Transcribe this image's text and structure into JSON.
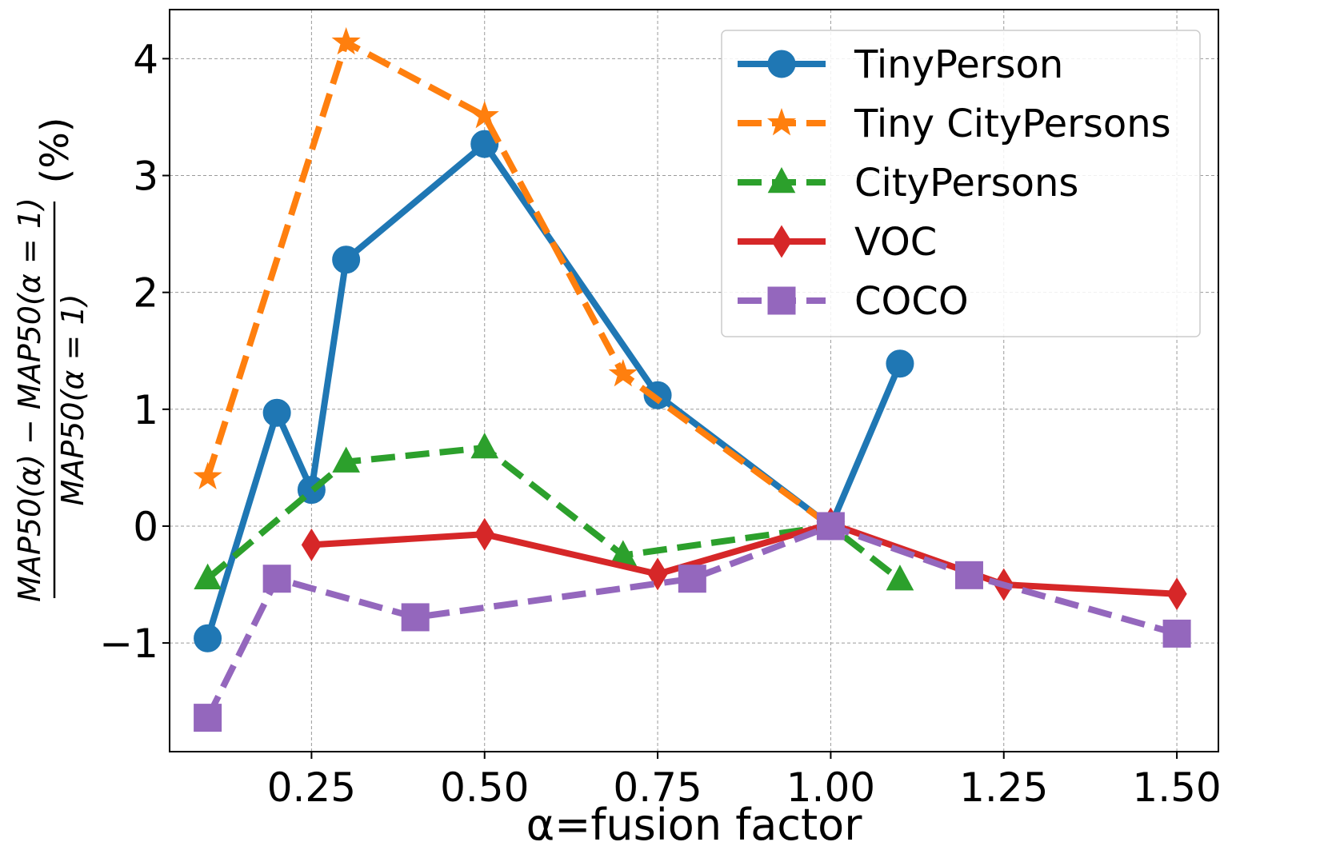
{
  "chart_data": {
    "type": "line",
    "title": "",
    "xlabel": "α=fusion factor",
    "ylabel": {
      "numerator": "MAP50(α) − MAP50(α = 1)",
      "denominator": "MAP50(α = 1)",
      "unit": "(%)"
    },
    "xlim": [
      0.045,
      1.56
    ],
    "ylim": [
      -1.93,
      4.42
    ],
    "grid": true,
    "legend_position": "top-right",
    "xticks": [
      0.25,
      0.5,
      0.75,
      1.0,
      1.25,
      1.5
    ],
    "xtick_labels": [
      "0.25",
      "0.50",
      "0.75",
      "1.00",
      "1.25",
      "1.50"
    ],
    "yticks": [
      -1,
      0,
      1,
      2,
      3,
      4
    ],
    "ytick_labels": [
      "−1",
      "0",
      "1",
      "2",
      "3",
      "4"
    ],
    "series": [
      {
        "name": "TinyPerson",
        "color": "#1f77b4",
        "line_style": "solid",
        "marker": "circle",
        "x": [
          0.1,
          0.2,
          0.25,
          0.3,
          0.5,
          0.75,
          1.0,
          1.1
        ],
        "y": [
          -0.96,
          0.97,
          0.31,
          2.28,
          3.27,
          1.12,
          0.0,
          1.39
        ]
      },
      {
        "name": "Tiny CityPersons",
        "color": "#ff7f0e",
        "line_style": "dashed",
        "marker": "star",
        "x": [
          0.1,
          0.3,
          0.5,
          0.7,
          1.0
        ],
        "y": [
          0.42,
          4.14,
          3.51,
          1.3,
          0.0
        ]
      },
      {
        "name": "CityPersons",
        "color": "#2ca02c",
        "line_style": "dashed",
        "marker": "triangle",
        "x": [
          0.1,
          0.3,
          0.5,
          0.7,
          1.0,
          1.1
        ],
        "y": [
          -0.45,
          0.55,
          0.67,
          -0.25,
          0.0,
          -0.46
        ]
      },
      {
        "name": "VOC",
        "color": "#d62728",
        "line_style": "solid",
        "marker": "diamond",
        "x": [
          0.25,
          0.5,
          0.75,
          1.0,
          1.25,
          1.5
        ],
        "y": [
          -0.16,
          -0.07,
          -0.41,
          0.02,
          -0.5,
          -0.58
        ]
      },
      {
        "name": "COCO",
        "color": "#9467bd",
        "line_style": "dashed",
        "marker": "square",
        "x": [
          0.1,
          0.2,
          0.4,
          0.8,
          1.0,
          1.2,
          1.5
        ],
        "y": [
          -1.64,
          -0.45,
          -0.78,
          -0.45,
          0.0,
          -0.42,
          -0.92
        ]
      }
    ]
  }
}
